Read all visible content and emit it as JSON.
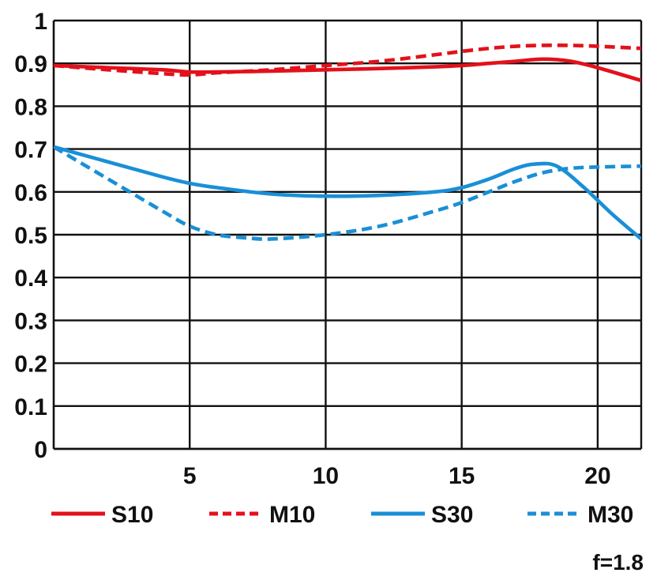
{
  "chart_data": {
    "type": "line",
    "title": "",
    "xlabel": "",
    "ylabel": "",
    "xlim": [
      0,
      21.6
    ],
    "ylim": [
      0,
      1
    ],
    "grid": true,
    "legend_position": "bottom",
    "annotation": "f=1.8",
    "x_ticks": [
      5,
      10,
      15,
      20
    ],
    "x_tick_labels": [
      "5",
      "10",
      "15",
      "20"
    ],
    "y_ticks": [
      0,
      0.1,
      0.2,
      0.3,
      0.4,
      0.5,
      0.6,
      0.7,
      0.8,
      0.9,
      1
    ],
    "y_tick_labels": [
      "0",
      "0.1",
      "0.2",
      "0.3",
      "0.4",
      "0.5",
      "0.6",
      "0.7",
      "0.8",
      "0.9",
      "1"
    ],
    "series": [
      {
        "name": "S10",
        "color": "#e3111b",
        "dash": "solid",
        "x": [
          0,
          2,
          4,
          5,
          6,
          8,
          10,
          12,
          14,
          15,
          16,
          17,
          18,
          19,
          20,
          21.6
        ],
        "y": [
          0.895,
          0.89,
          0.885,
          0.88,
          0.88,
          0.882,
          0.885,
          0.888,
          0.892,
          0.895,
          0.9,
          0.905,
          0.91,
          0.905,
          0.89,
          0.86
        ]
      },
      {
        "name": "M10",
        "color": "#e3111b",
        "dash": "dashed",
        "x": [
          0,
          2,
          4,
          5,
          6,
          8,
          10,
          12,
          14,
          15,
          16,
          17,
          18,
          19,
          20,
          21.6
        ],
        "y": [
          0.895,
          0.885,
          0.876,
          0.873,
          0.878,
          0.885,
          0.895,
          0.905,
          0.92,
          0.928,
          0.935,
          0.94,
          0.942,
          0.942,
          0.94,
          0.935
        ]
      },
      {
        "name": "S30",
        "color": "#1a8fd6",
        "dash": "solid",
        "x": [
          0,
          2,
          4,
          5,
          6,
          8,
          10,
          12,
          14,
          15,
          16,
          17,
          17.7,
          18.5,
          19.5,
          20.5,
          21.6
        ],
        "y": [
          0.705,
          0.67,
          0.635,
          0.62,
          0.61,
          0.595,
          0.59,
          0.592,
          0.6,
          0.61,
          0.63,
          0.655,
          0.665,
          0.66,
          0.61,
          0.55,
          0.49
        ]
      },
      {
        "name": "M30",
        "color": "#1a8fd6",
        "dash": "dashed",
        "x": [
          0,
          2,
          4,
          5,
          6,
          7,
          8,
          10,
          12,
          14,
          15,
          16,
          17,
          18,
          19,
          20,
          21.6
        ],
        "y": [
          0.705,
          0.63,
          0.555,
          0.52,
          0.5,
          0.493,
          0.49,
          0.5,
          0.52,
          0.555,
          0.575,
          0.6,
          0.625,
          0.645,
          0.655,
          0.658,
          0.66
        ]
      }
    ]
  }
}
